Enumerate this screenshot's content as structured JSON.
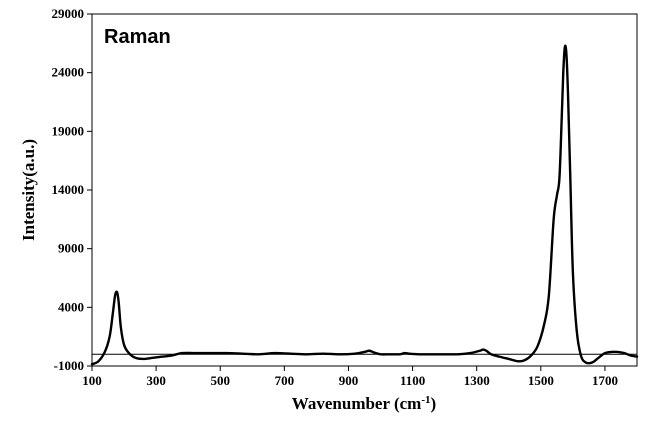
{
  "chart_data": {
    "type": "line",
    "inset_label": "Raman",
    "xlabel_main": "Wavenumber (cm",
    "xlabel_sup": "-1",
    "xlabel_tail": ")",
    "ylabel": "Intensity(a.u.)",
    "xlim": [
      100,
      1800
    ],
    "ylim": [
      -1000,
      29000
    ],
    "xticks": [
      100,
      300,
      500,
      700,
      900,
      1100,
      1300,
      1500,
      1700
    ],
    "yticks": [
      -1000,
      4000,
      9000,
      14000,
      19000,
      24000,
      29000
    ],
    "grid": false,
    "legend": "none",
    "line_color": "#000000",
    "series": [
      {
        "x": [
          100,
          120,
          140,
          155,
          165,
          172,
          178,
          183,
          190,
          200,
          215,
          235,
          260,
          290,
          320,
          350,
          380,
          420,
          470,
          520,
          570,
          620,
          670,
          720,
          770,
          820,
          870,
          920,
          950,
          965,
          980,
          1000,
          1030,
          1060,
          1075,
          1090,
          1120,
          1160,
          1200,
          1240,
          1280,
          1310,
          1320,
          1330,
          1345,
          1370,
          1400,
          1430,
          1450,
          1470,
          1490,
          1510,
          1525,
          1540,
          1550,
          1558,
          1565,
          1570,
          1575,
          1580,
          1585,
          1592,
          1600,
          1612,
          1625,
          1640,
          1660,
          1680,
          1700,
          1720,
          1740,
          1760,
          1780,
          1800
        ],
        "y": [
          -850,
          -600,
          200,
          1500,
          3500,
          5000,
          5300,
          4500,
          2300,
          800,
          100,
          -300,
          -400,
          -300,
          -200,
          -100,
          100,
          100,
          100,
          100,
          50,
          0,
          100,
          50,
          0,
          50,
          0,
          50,
          200,
          300,
          150,
          0,
          0,
          0,
          100,
          50,
          0,
          0,
          0,
          0,
          100,
          300,
          400,
          300,
          0,
          -200,
          -400,
          -600,
          -500,
          -100,
          700,
          2500,
          5000,
          11500,
          13500,
          15000,
          20000,
          24000,
          26200,
          25500,
          22000,
          15000,
          7000,
          2000,
          -100,
          -700,
          -700,
          -300,
          100,
          200,
          200,
          100,
          -100,
          -200
        ]
      }
    ]
  }
}
